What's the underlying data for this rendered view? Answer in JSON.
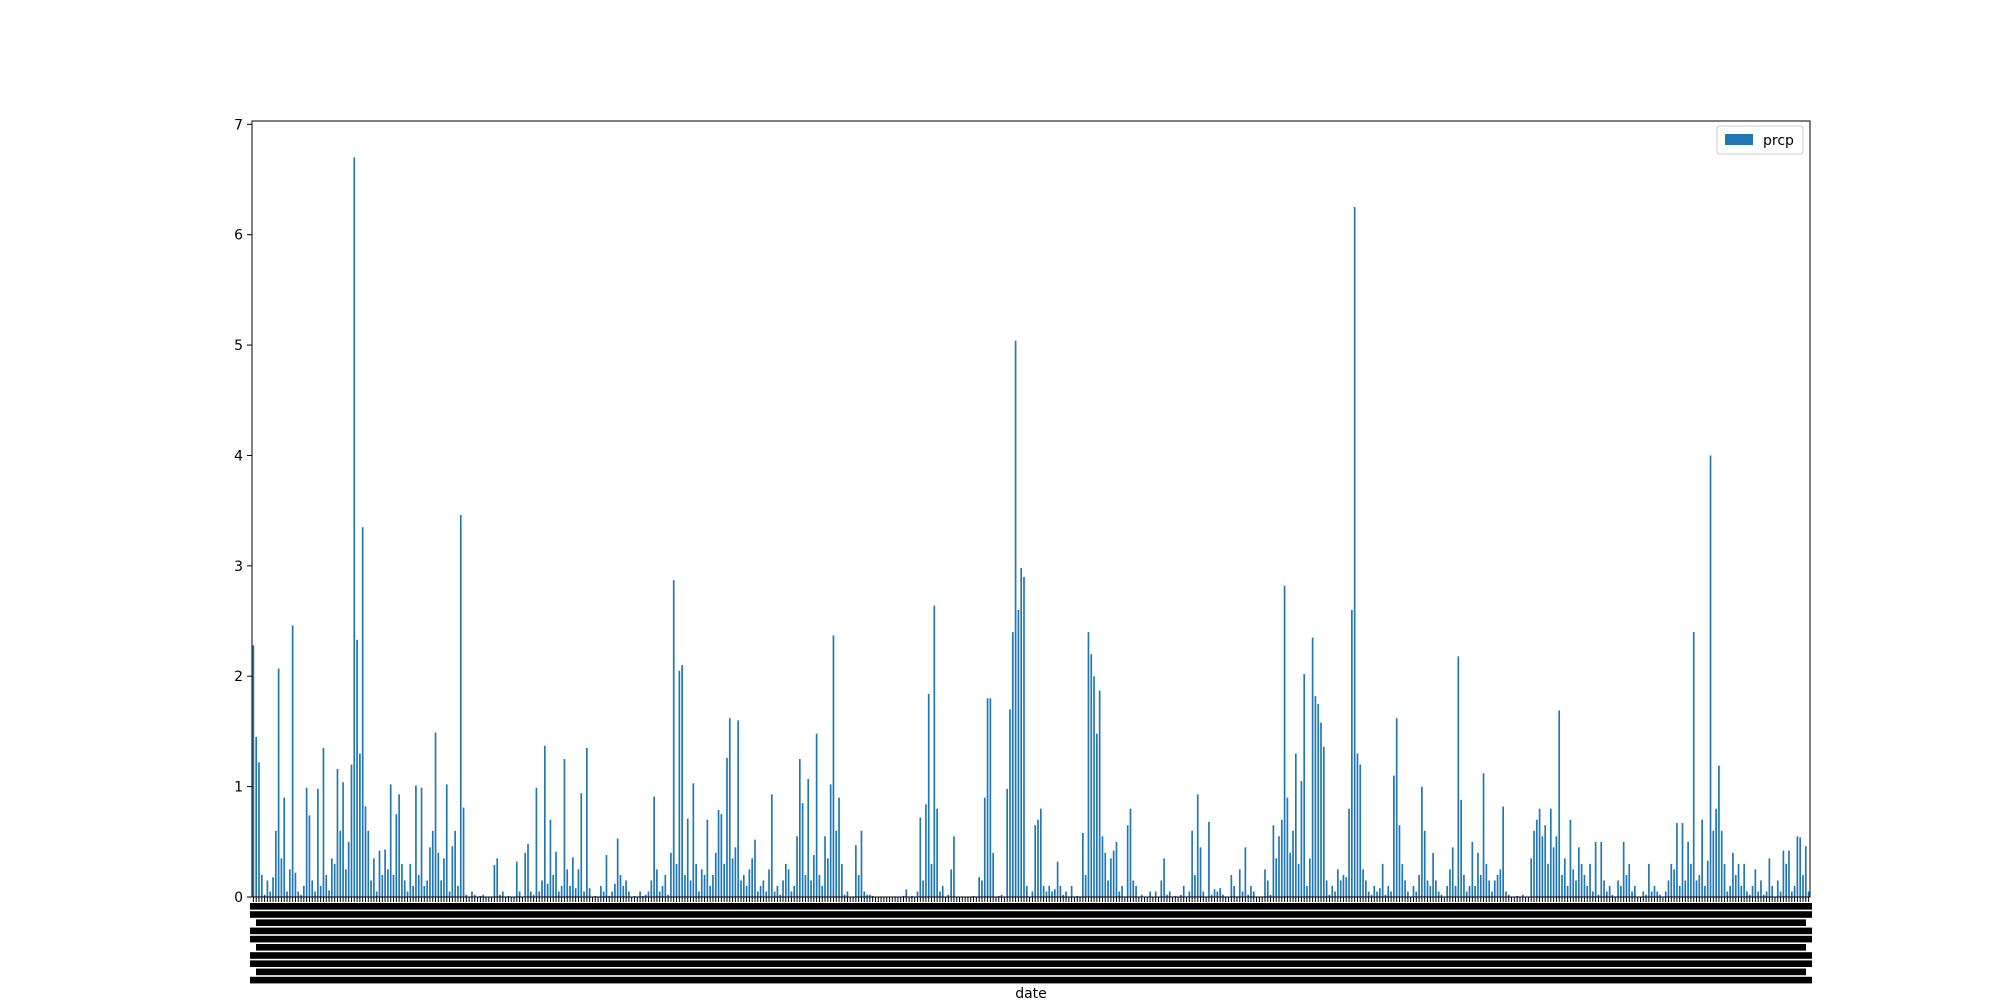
{
  "chart_data": {
    "type": "bar",
    "title": "",
    "xlabel": "date",
    "ylabel": "",
    "ylim": [
      0,
      7.03
    ],
    "yticks": [
      0,
      1,
      2,
      3,
      4,
      5,
      6,
      7
    ],
    "legend": {
      "position": "top-right",
      "entries": [
        "prcp"
      ]
    },
    "grid": false,
    "bar_color": "#1f77b4",
    "x_tick_labels_note": "",
    "series": [
      {
        "name": "prcp",
        "values": [
          2.28,
          1.45,
          1.22,
          0.2,
          0.02,
          0.15,
          0.05,
          0.18,
          0.6,
          2.07,
          0.35,
          0.9,
          0.05,
          0.25,
          2.46,
          0.22,
          0.05,
          0.02,
          0.1,
          0.99,
          0.74,
          0.15,
          0.05,
          0.98,
          0.1,
          1.35,
          0.2,
          0.06,
          0.35,
          0.3,
          1.16,
          0.6,
          1.04,
          0.25,
          0.5,
          1.2,
          6.7,
          2.33,
          1.3,
          3.35,
          0.82,
          0.6,
          0.15,
          0.35,
          0.05,
          0.42,
          0.2,
          0.43,
          0.25,
          1.02,
          0.2,
          0.75,
          0.93,
          0.3,
          0.15,
          0.05,
          0.3,
          0.1,
          1.01,
          0.2,
          0.99,
          0.1,
          0.15,
          0.45,
          0.6,
          1.49,
          0.4,
          0.15,
          0.35,
          1.02,
          0.05,
          0.46,
          0.6,
          0.1,
          3.46,
          0.81,
          0.02,
          0.0,
          0.05,
          0.02,
          0.0,
          0.01,
          0.02,
          0.0,
          0.0,
          0.0,
          0.29,
          0.35,
          0.02,
          0.05,
          0.0,
          0.01,
          0.0,
          0.0,
          0.32,
          0.05,
          0.0,
          0.4,
          0.48,
          0.05,
          0.02,
          0.99,
          0.05,
          0.15,
          1.37,
          0.12,
          0.7,
          0.2,
          0.41,
          0.05,
          0.1,
          1.25,
          0.25,
          0.1,
          0.36,
          0.08,
          0.25,
          0.94,
          0.05,
          1.35,
          0.08,
          0.0,
          0.01,
          0.0,
          0.1,
          0.05,
          0.38,
          0.01,
          0.05,
          0.12,
          0.53,
          0.2,
          0.1,
          0.15,
          0.05,
          0.0,
          0.01,
          0.0,
          0.05,
          0.01,
          0.02,
          0.05,
          0.15,
          0.91,
          0.25,
          0.05,
          0.1,
          0.2,
          0.02,
          0.4,
          2.87,
          0.3,
          2.05,
          2.1,
          0.2,
          0.71,
          0.15,
          1.03,
          0.3,
          0.05,
          0.25,
          0.2,
          0.7,
          0.1,
          0.2,
          0.4,
          0.79,
          0.75,
          0.3,
          1.26,
          1.62,
          0.35,
          0.45,
          1.6,
          0.15,
          0.2,
          0.1,
          0.25,
          0.35,
          0.52,
          0.05,
          0.1,
          0.15,
          0.05,
          0.25,
          0.93,
          0.05,
          0.1,
          0.02,
          0.15,
          0.3,
          0.25,
          0.05,
          0.1,
          0.55,
          1.25,
          0.85,
          0.2,
          1.07,
          0.15,
          0.38,
          1.48,
          0.2,
          0.1,
          0.55,
          0.35,
          1.02,
          2.37,
          0.6,
          0.9,
          0.3,
          0.02,
          0.05,
          0.0,
          0.0,
          0.47,
          0.2,
          0.6,
          0.05,
          0.02,
          0.02,
          0.01,
          0.0,
          0.0,
          0.0,
          0.0,
          0.0,
          0.0,
          0.0,
          0.0,
          0.0,
          0.0,
          0.01,
          0.07,
          0.0,
          0.01,
          0.0,
          0.05,
          0.72,
          0.15,
          0.84,
          1.84,
          0.3,
          2.64,
          0.8,
          0.05,
          0.1,
          0.0,
          0.02,
          0.25,
          0.55,
          0.0,
          0.0,
          0.0,
          0.0,
          0.0,
          0.0,
          0.01,
          0.0,
          0.18,
          0.15,
          0.9,
          1.8,
          1.8,
          0.4,
          0.0,
          0.01,
          0.02,
          0.0,
          0.98,
          1.7,
          2.4,
          5.04,
          2.6,
          2.98,
          2.9,
          0.1,
          0.0,
          0.05,
          0.65,
          0.7,
          0.8,
          0.1,
          0.05,
          0.1,
          0.05,
          0.07,
          0.32,
          0.1,
          0.02,
          0.05,
          0.0,
          0.1,
          0.0,
          0.01,
          0.0,
          0.58,
          0.2,
          2.4,
          2.2,
          2.0,
          1.48,
          1.87,
          0.55,
          0.4,
          0.15,
          0.35,
          0.42,
          0.5,
          0.05,
          0.1,
          0.0,
          0.65,
          0.8,
          0.15,
          0.1,
          0.0,
          0.02,
          0.0,
          0.0,
          0.05,
          0.0,
          0.05,
          0.0,
          0.15,
          0.35,
          0.02,
          0.05,
          0.0,
          0.01,
          0.0,
          0.02,
          0.1,
          0.0,
          0.05,
          0.6,
          0.2,
          0.93,
          0.45,
          0.05,
          0.0,
          0.68,
          0.02,
          0.07,
          0.05,
          0.08,
          0.02,
          0.0,
          0.0,
          0.2,
          0.1,
          0.0,
          0.25,
          0.05,
          0.45,
          0.02,
          0.1,
          0.05,
          0.0,
          0.0,
          0.0,
          0.25,
          0.15,
          0.02,
          0.65,
          0.35,
          0.55,
          0.7,
          2.82,
          0.9,
          0.4,
          0.6,
          1.3,
          0.3,
          1.05,
          2.02,
          0.1,
          0.35,
          2.35,
          1.82,
          1.75,
          1.58,
          1.36,
          0.15,
          0.02,
          0.1,
          0.05,
          0.25,
          0.15,
          0.2,
          0.18,
          0.8,
          2.6,
          6.25,
          1.3,
          1.2,
          0.25,
          0.15,
          0.05,
          0.02,
          0.1,
          0.05,
          0.08,
          0.3,
          0.02,
          0.1,
          0.05,
          1.1,
          1.62,
          0.65,
          0.3,
          0.15,
          0.05,
          0.0,
          0.1,
          0.05,
          0.2,
          1.0,
          0.6,
          0.15,
          0.1,
          0.4,
          0.15,
          0.05,
          0.02,
          0.0,
          0.1,
          0.25,
          0.45,
          0.1,
          2.18,
          0.88,
          0.2,
          0.05,
          0.1,
          0.5,
          0.1,
          0.4,
          0.2,
          1.12,
          0.3,
          0.15,
          0.05,
          0.15,
          0.2,
          0.25,
          0.82,
          0.05,
          0.02,
          0.0,
          0.0,
          0.01,
          0.0,
          0.02,
          0.0,
          0.0,
          0.35,
          0.6,
          0.7,
          0.8,
          0.55,
          0.65,
          0.3,
          0.8,
          0.45,
          0.55,
          1.69,
          0.2,
          0.35,
          0.1,
          0.7,
          0.25,
          0.15,
          0.45,
          0.3,
          0.2,
          0.1,
          0.3,
          0.05,
          0.5,
          0.02,
          0.5,
          0.15,
          0.05,
          0.1,
          0.02,
          0.0,
          0.15,
          0.1,
          0.5,
          0.2,
          0.3,
          0.05,
          0.1,
          0.0,
          0.0,
          0.05,
          0.02,
          0.3,
          0.05,
          0.1,
          0.05,
          0.02,
          0.0,
          0.05,
          0.15,
          0.3,
          0.25,
          0.67,
          0.1,
          0.67,
          0.15,
          0.5,
          0.3,
          2.4,
          0.15,
          0.2,
          0.7,
          0.1,
          0.33,
          4.0,
          0.6,
          0.8,
          1.19,
          0.6,
          0.3,
          0.05,
          0.1,
          0.4,
          0.2,
          0.3,
          0.1,
          0.3,
          0.05,
          0.02,
          0.1,
          0.25,
          0.05,
          0.15,
          0.02,
          0.05,
          0.35,
          0.1,
          0.0,
          0.15,
          0.05,
          0.42,
          0.3,
          0.42,
          0.05,
          0.1,
          0.55,
          0.54,
          0.2,
          0.46,
          0.05
        ]
      }
    ]
  }
}
